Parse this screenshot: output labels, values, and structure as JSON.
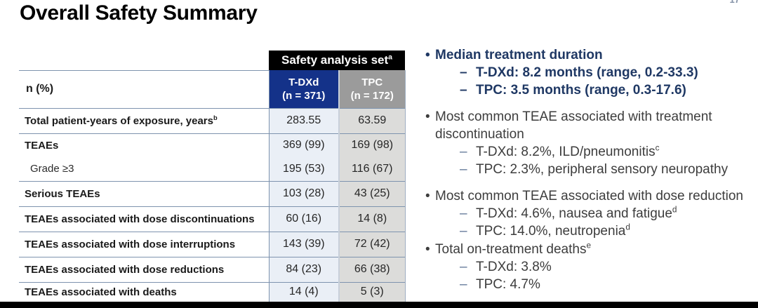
{
  "title": "Overall Safety Summary",
  "page_number": "17",
  "colors": {
    "tdxd_header_navy": "#143289",
    "tpc_header_gray": "#9b9b9b",
    "group_header_black": "#000000",
    "tdxd_cell_blue": "#eaeff6",
    "tpc_cell_gray": "#dcdcda",
    "table_line": "#7e93ae",
    "emphasis_navy": "#1f3864",
    "body_text": "#3d3d3d"
  },
  "table": {
    "group_header": {
      "label": "Safety analysis set",
      "sup": "a"
    },
    "metric_label": "n (%)",
    "columns": [
      {
        "name": "T-DXd",
        "n": "(n = 371)"
      },
      {
        "name": "TPC",
        "n": "(n = 172)"
      }
    ],
    "rows": [
      {
        "lines": [
          {
            "label": "Total patient-years of exposure, years",
            "sup": "b",
            "values": [
              "283.55",
              "63.59"
            ]
          }
        ]
      },
      {
        "lines": [
          {
            "label": "TEAEs",
            "values": [
              "369 (99)",
              "169 (98)"
            ]
          },
          {
            "label": "Grade ≥3",
            "indent": true,
            "values": [
              "195 (53)",
              "116 (67)"
            ]
          }
        ]
      },
      {
        "lines": [
          {
            "label": "Serious TEAEs",
            "values": [
              "103 (28)",
              "43 (25)"
            ]
          }
        ]
      },
      {
        "lines": [
          {
            "label": "TEAEs associated with dose discontinuations",
            "values": [
              "60 (16)",
              "14 (8)"
            ]
          }
        ]
      },
      {
        "lines": [
          {
            "label": "TEAEs associated with dose interruptions",
            "values": [
              "143 (39)",
              "72 (42)"
            ]
          }
        ]
      },
      {
        "lines": [
          {
            "label": "TEAEs associated with dose reductions",
            "values": [
              "84 (23)",
              "66 (38)"
            ]
          }
        ]
      },
      {
        "lines": [
          {
            "label": "TEAEs associated with deaths",
            "values": [
              "14 (4)",
              "5 (3)"
            ]
          }
        ]
      }
    ]
  },
  "bullets": [
    {
      "style": "emphasis",
      "text": "Median treatment duration",
      "subs": [
        {
          "text": "T-DXd: 8.2 months (range, 0.2-33.3)"
        },
        {
          "text": "TPC: 3.5 months (range, 0.3-17.6)"
        }
      ]
    },
    {
      "style": "normal",
      "text": "Most common TEAE associated with treatment discontinuation",
      "subs": [
        {
          "text": "T-DXd: 8.2%, ILD/pneumonitis",
          "sup": "c"
        },
        {
          "text": "TPC: 2.3%, peripheral sensory neuropathy"
        }
      ]
    },
    {
      "style": "normal",
      "text": "Most common TEAE associated with dose reduction",
      "subs": [
        {
          "text": "T-DXd: 4.6%, nausea and fatigue",
          "sup": "d"
        },
        {
          "text": "TPC: 14.0%, neutropenia",
          "sup": "d"
        }
      ]
    },
    {
      "style": "normal",
      "text": "Total on-treatment deaths",
      "sup": "e",
      "subs": [
        {
          "text": "T-DXd: 3.8%"
        },
        {
          "text": "TPC: 4.7%"
        }
      ]
    }
  ],
  "glyphs": {
    "bullet_dot": "•",
    "sub_dash": "–"
  }
}
